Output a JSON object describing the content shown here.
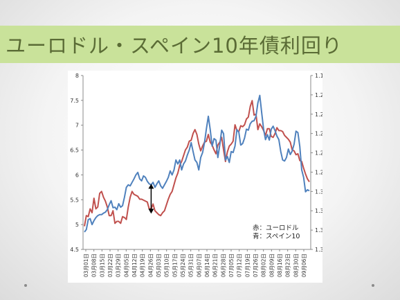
{
  "slide": {
    "title": "ユーロドル・スペイン10年債利回り"
  },
  "colors": {
    "eurusd": "#c0504d",
    "spain10y": "#4f81bd",
    "title_band": "#c9e29a",
    "title_text": "#5a6b35"
  },
  "chart_data": {
    "type": "line",
    "title": "",
    "left_axis": {
      "ylim": [
        4.5,
        8
      ],
      "ticks": [
        "4.5",
        "5",
        "5.5",
        "6",
        "6.5",
        "7",
        "7.5",
        "8"
      ]
    },
    "right_axis": {
      "ylim": [
        1.36,
        1.18
      ],
      "inverted": true,
      "ticks": [
        "1.18",
        "1.2",
        "1.22",
        "1.24",
        "1.26",
        "1.28",
        "1.3",
        "1.32",
        "1.34",
        "1.36"
      ]
    },
    "x_tick_labels": [
      "03月01日",
      "03月08日",
      "03月15日",
      "03月22日",
      "03月29日",
      "04月05日",
      "04月12日",
      "04月19日",
      "04月26日",
      "05月03日",
      "05月10日",
      "05月17日",
      "05月24日",
      "05月31日",
      "06月07日",
      "06月14日",
      "06月21日",
      "06月28日",
      "07月05日",
      "07月12日",
      "07月19日",
      "07月26日",
      "08月02日",
      "08月09日",
      "08月16日",
      "08月23日",
      "08月30日",
      "09月06日"
    ],
    "legend": [
      "赤：ユーロドル",
      "青：スペイン10"
    ],
    "legend_position": "bottom-right",
    "grid": false,
    "series": [
      {
        "name": "赤：ユーロドル",
        "axis": "right",
        "color": "#c0504d",
        "values": [
          1.336,
          1.325,
          1.326,
          1.318,
          1.322,
          1.307,
          1.318,
          1.316,
          1.302,
          1.3,
          1.306,
          1.31,
          1.316,
          1.325,
          1.325,
          1.32,
          1.333,
          1.331,
          1.331,
          1.333,
          1.326,
          1.327,
          1.329,
          1.316,
          1.306,
          1.3,
          1.303,
          1.304,
          1.305,
          1.308,
          1.308,
          1.309,
          1.31,
          1.311,
          1.318,
          1.318,
          1.313,
          1.32,
          1.322,
          1.324,
          1.325,
          1.322,
          1.32,
          1.314,
          1.308,
          1.303,
          1.3,
          1.293,
          1.286,
          1.281,
          1.273,
          1.269,
          1.263,
          1.257,
          1.254,
          1.248,
          1.247,
          1.24,
          1.236,
          1.241,
          1.251,
          1.258,
          1.253,
          1.249,
          1.248,
          1.241,
          1.249,
          1.252,
          1.257,
          1.261,
          1.252,
          1.249,
          1.244,
          1.257,
          1.269,
          1.259,
          1.253,
          1.251,
          1.248,
          1.231,
          1.237,
          1.238,
          1.232,
          1.233,
          1.231,
          1.225,
          1.223,
          1.212,
          1.206,
          1.221,
          1.22,
          1.236,
          1.23,
          1.233,
          1.237,
          1.242,
          1.235,
          1.235,
          1.243,
          1.244,
          1.24,
          1.234,
          1.237,
          1.237,
          1.238,
          1.242,
          1.244,
          1.246,
          1.249,
          1.257,
          1.258,
          1.262,
          1.261,
          1.268,
          1.269,
          1.276,
          1.282,
          1.287,
          1.29
        ]
      },
      {
        "name": "青：スペイン10",
        "axis": "left",
        "color": "#4f81bd",
        "values": [
          4.85,
          4.9,
          5.1,
          5.12,
          5.0,
          5.08,
          5.14,
          5.18,
          5.2,
          5.2,
          5.23,
          5.25,
          5.3,
          5.4,
          5.48,
          5.34,
          5.35,
          5.3,
          5.42,
          5.35,
          5.38,
          5.55,
          5.75,
          5.8,
          5.78,
          5.85,
          5.92,
          6.0,
          6.05,
          5.92,
          5.88,
          5.98,
          5.95,
          5.87,
          5.82,
          5.8,
          5.85,
          5.75,
          5.82,
          5.88,
          5.78,
          5.73,
          5.8,
          5.87,
          5.95,
          6.08,
          6.0,
          6.1,
          6.3,
          6.22,
          6.3,
          6.1,
          6.22,
          6.28,
          6.4,
          6.5,
          6.65,
          6.47,
          6.3,
          6.25,
          6.1,
          6.35,
          6.45,
          6.65,
          6.93,
          7.18,
          6.91,
          6.58,
          6.73,
          6.7,
          6.35,
          6.6,
          6.9,
          6.83,
          6.3,
          6.37,
          6.25,
          6.47,
          6.45,
          6.58,
          6.91,
          6.86,
          6.6,
          6.63,
          6.74,
          6.92,
          6.9,
          7.03,
          7.08,
          7.09,
          7.18,
          7.45,
          7.6,
          7.25,
          6.92,
          6.71,
          6.81,
          6.7,
          6.92,
          6.98,
          6.89,
          6.78,
          6.71,
          6.47,
          6.3,
          6.28,
          6.35,
          6.52,
          6.41,
          6.48,
          6.62,
          6.88,
          6.85,
          6.57,
          6.1,
          5.95,
          5.66,
          5.7,
          5.68
        ]
      }
    ],
    "annotations": [
      {
        "type": "double-arrow",
        "x_index": 35,
        "from_left_value": 5.22,
        "to_left_value": 5.82
      }
    ]
  }
}
